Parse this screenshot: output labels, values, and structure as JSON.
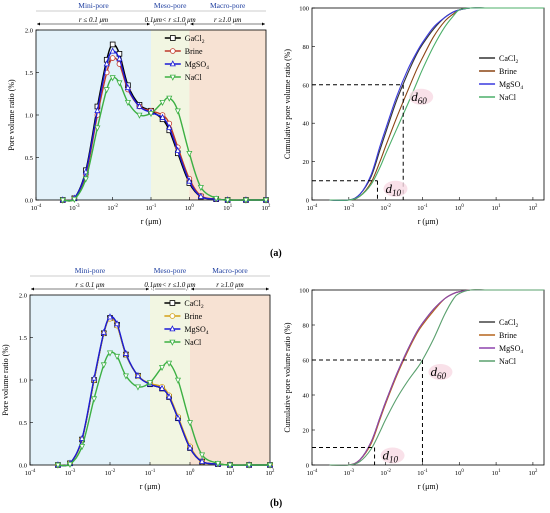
{
  "figure": {
    "panel_labels": [
      "(a)",
      "(b)"
    ],
    "zone_labels": [
      "Mini-pore",
      "Meso-pore",
      "Macro-pore"
    ],
    "zone_ranges": {
      "mini": [
        "r ",
        "≤",
        " 0.1 μm"
      ],
      "meso": [
        "0.1μm",
        "<",
        " r ",
        "≤",
        "1.0 μm"
      ],
      "macro": [
        "r ",
        "≥",
        "1.0 μm"
      ]
    },
    "colors": {
      "mini_zone": "#e3f2fa",
      "meso_zone": "#f2f6e2",
      "macro_zone": "#f7e2d3",
      "axis_text": "#000000",
      "zone_title": "#1f3fa0"
    }
  },
  "chart_data": [
    {
      "id": "a-left",
      "type": "line",
      "panel": "(a)",
      "xlabel": "r (μm)",
      "ylabel": "Pore volume ratio (%)",
      "xscale": "log",
      "xlim": [
        0.0001,
        100
      ],
      "ylim": [
        0,
        2.0
      ],
      "yticks": [
        "0.0",
        "0.5",
        "1.0",
        "1.5",
        "2.0"
      ],
      "xticks": [
        "10-4",
        "10-3",
        "10-2",
        "10-1",
        "100",
        "101",
        "102"
      ],
      "legend": "top-right",
      "series": [
        {
          "name": "GaCl2",
          "color": "#000000",
          "marker": "square",
          "x": [
            0.0005,
            0.001,
            0.002,
            0.004,
            0.007,
            0.01,
            0.015,
            0.025,
            0.05,
            0.1,
            0.2,
            0.3,
            0.5,
            1,
            2,
            5,
            10,
            30,
            100
          ],
          "y": [
            0,
            0.02,
            0.35,
            1.1,
            1.65,
            1.83,
            1.72,
            1.35,
            1.12,
            1.05,
            0.95,
            0.82,
            0.55,
            0.2,
            0.04,
            0.01,
            0,
            0,
            0
          ]
        },
        {
          "name": "Brine",
          "color": "#c0392b",
          "marker": "circle",
          "x": [
            0.0005,
            0.001,
            0.002,
            0.004,
            0.007,
            0.01,
            0.015,
            0.025,
            0.05,
            0.1,
            0.2,
            0.3,
            0.5,
            1,
            2,
            5,
            10,
            30,
            100
          ],
          "y": [
            0,
            0.02,
            0.3,
            1.0,
            1.5,
            1.67,
            1.6,
            1.3,
            1.1,
            1.05,
            1.0,
            0.9,
            0.62,
            0.25,
            0.05,
            0.01,
            0,
            0,
            0
          ]
        },
        {
          "name": "MgSO4",
          "color": "#1a1ad6",
          "marker": "triangle-up",
          "x": [
            0.0005,
            0.001,
            0.002,
            0.004,
            0.007,
            0.01,
            0.015,
            0.025,
            0.05,
            0.1,
            0.2,
            0.3,
            0.5,
            1,
            2,
            5,
            10,
            30,
            100
          ],
          "y": [
            0,
            0.02,
            0.33,
            1.05,
            1.6,
            1.75,
            1.66,
            1.32,
            1.1,
            1.03,
            0.97,
            0.85,
            0.58,
            0.22,
            0.04,
            0.01,
            0,
            0,
            0
          ]
        },
        {
          "name": "NaCl",
          "color": "#3cb043",
          "marker": "triangle-down",
          "x": [
            0.0005,
            0.001,
            0.002,
            0.004,
            0.007,
            0.01,
            0.015,
            0.025,
            0.05,
            0.1,
            0.2,
            0.3,
            0.5,
            1,
            2,
            5,
            10,
            30,
            100
          ],
          "y": [
            0,
            0.01,
            0.25,
            0.85,
            1.3,
            1.44,
            1.38,
            1.15,
            1.0,
            1.02,
            1.15,
            1.2,
            1.05,
            0.55,
            0.15,
            0.02,
            0,
            0,
            0
          ]
        }
      ]
    },
    {
      "id": "a-right",
      "type": "line",
      "panel": "(a)",
      "xlabel": "r (μm)",
      "ylabel": "Cumulative pore volume ratio (%)",
      "xscale": "log",
      "xlim": [
        0.0001,
        200
      ],
      "ylim": [
        0,
        100
      ],
      "yticks": [
        "0",
        "20",
        "40",
        "60",
        "80",
        "100"
      ],
      "xticks": [
        "10-4",
        "10-3",
        "10-2",
        "10-1",
        "100",
        "101",
        "102"
      ],
      "legend": "right",
      "annotations": {
        "d60": "d60",
        "d10": "d10",
        "d60_y": 60,
        "d60_x": 0.03,
        "d10_y": 10,
        "d10_x": 0.006
      },
      "series": [
        {
          "name": "CaCl2",
          "color": "#333333",
          "x": [
            0.0003,
            0.001,
            0.002,
            0.004,
            0.007,
            0.01,
            0.02,
            0.04,
            0.07,
            0.1,
            0.2,
            0.4,
            0.7,
            1,
            2,
            5,
            10,
            100,
            200
          ],
          "y": [
            0,
            0,
            3,
            12,
            26,
            35,
            52,
            66,
            76,
            81,
            89,
            95,
            98,
            99,
            100,
            100,
            100,
            100,
            100
          ]
        },
        {
          "name": "Brine",
          "color": "#8b4513",
          "x": [
            0.0003,
            0.001,
            0.002,
            0.004,
            0.007,
            0.01,
            0.02,
            0.04,
            0.07,
            0.1,
            0.2,
            0.4,
            0.7,
            1,
            2,
            5,
            10,
            100,
            200
          ],
          "y": [
            0,
            0,
            2,
            9,
            20,
            28,
            43,
            57,
            68,
            74,
            85,
            93,
            97,
            99,
            100,
            100,
            100,
            100,
            100
          ]
        },
        {
          "name": "MgSO4",
          "color": "#3a3adf",
          "x": [
            0.0003,
            0.001,
            0.002,
            0.004,
            0.007,
            0.01,
            0.02,
            0.04,
            0.07,
            0.1,
            0.2,
            0.4,
            0.7,
            1,
            2,
            5,
            10,
            100,
            200
          ],
          "y": [
            0,
            0,
            3,
            13,
            28,
            37,
            54,
            68,
            77,
            82,
            90,
            95,
            98,
            99,
            100,
            100,
            100,
            100,
            100
          ]
        },
        {
          "name": "NaCl",
          "color": "#4caf6a",
          "x": [
            0.0003,
            0.001,
            0.002,
            0.004,
            0.007,
            0.01,
            0.02,
            0.04,
            0.07,
            0.1,
            0.2,
            0.4,
            0.7,
            1,
            2,
            5,
            10,
            100,
            200
          ],
          "y": [
            0,
            0,
            2,
            8,
            17,
            24,
            37,
            50,
            61,
            68,
            80,
            90,
            96,
            99,
            100,
            100,
            100,
            100,
            100
          ]
        }
      ]
    },
    {
      "id": "b-left",
      "type": "line",
      "panel": "(b)",
      "xlabel": "r (μm)",
      "ylabel": "Pore volume ratio (%)",
      "xscale": "log",
      "xlim": [
        0.0001,
        100
      ],
      "ylim": [
        0,
        2.0
      ],
      "yticks": [
        "0.0",
        "0.5",
        "1.0",
        "1.5",
        "2.0"
      ],
      "xticks": [
        "10-4",
        "10-3",
        "10-2",
        "10-1",
        "100",
        "101",
        "102"
      ],
      "legend": "top-right",
      "series": [
        {
          "name": "CaCl2",
          "color": "#000000",
          "marker": "square",
          "x": [
            0.0005,
            0.001,
            0.002,
            0.004,
            0.007,
            0.01,
            0.015,
            0.025,
            0.05,
            0.1,
            0.2,
            0.3,
            0.5,
            1,
            2,
            5,
            10,
            30,
            100
          ],
          "y": [
            0,
            0.02,
            0.3,
            1.0,
            1.55,
            1.73,
            1.65,
            1.3,
            1.05,
            0.95,
            0.9,
            0.8,
            0.55,
            0.2,
            0.04,
            0.01,
            0,
            0,
            0
          ]
        },
        {
          "name": "Brine",
          "color": "#d4a017",
          "marker": "circle",
          "x": [
            0.0005,
            0.001,
            0.002,
            0.004,
            0.007,
            0.01,
            0.015,
            0.025,
            0.05,
            0.1,
            0.2,
            0.3,
            0.5,
            1,
            2,
            5,
            10,
            30,
            100
          ],
          "y": [
            0,
            0.02,
            0.3,
            1.0,
            1.55,
            1.72,
            1.64,
            1.3,
            1.05,
            0.96,
            0.92,
            0.82,
            0.57,
            0.22,
            0.04,
            0.01,
            0,
            0,
            0
          ]
        },
        {
          "name": "MgSO4",
          "color": "#1a1ad6",
          "marker": "triangle-up",
          "x": [
            0.0005,
            0.001,
            0.002,
            0.004,
            0.007,
            0.01,
            0.015,
            0.025,
            0.05,
            0.1,
            0.2,
            0.3,
            0.5,
            1,
            2,
            5,
            10,
            30,
            100
          ],
          "y": [
            0,
            0.02,
            0.31,
            1.02,
            1.56,
            1.74,
            1.66,
            1.31,
            1.05,
            0.95,
            0.9,
            0.8,
            0.55,
            0.2,
            0.04,
            0.01,
            0,
            0,
            0
          ]
        },
        {
          "name": "NaCl",
          "color": "#3cb043",
          "marker": "triangle-down",
          "x": [
            0.0005,
            0.001,
            0.002,
            0.004,
            0.007,
            0.01,
            0.015,
            0.025,
            0.05,
            0.1,
            0.2,
            0.3,
            0.5,
            1,
            2,
            5,
            10,
            30,
            100
          ],
          "y": [
            0,
            0.01,
            0.22,
            0.78,
            1.18,
            1.32,
            1.28,
            1.05,
            0.92,
            0.97,
            1.15,
            1.2,
            1.0,
            0.5,
            0.12,
            0.02,
            0,
            0,
            0
          ]
        }
      ]
    },
    {
      "id": "b-right",
      "type": "line",
      "panel": "(b)",
      "xlabel": "r (μm)",
      "ylabel": "Cumulative pore volume ratio (%)",
      "xscale": "log",
      "xlim": [
        0.0001,
        200
      ],
      "ylim": [
        0,
        100
      ],
      "yticks": [
        "0",
        "20",
        "40",
        "60",
        "80",
        "100"
      ],
      "xticks": [
        "10-4",
        "10-3",
        "10-2",
        "10-1",
        "100",
        "101",
        "102"
      ],
      "legend": "right",
      "annotations": {
        "d60": "d60",
        "d10": "d10",
        "d60_y": 60,
        "d60_x": 0.1,
        "d10_y": 10,
        "d10_x": 0.005
      },
      "series": [
        {
          "name": "CaCl2",
          "color": "#444444",
          "x": [
            0.0003,
            0.001,
            0.002,
            0.004,
            0.007,
            0.01,
            0.02,
            0.04,
            0.07,
            0.1,
            0.2,
            0.4,
            0.7,
            1,
            2,
            5,
            10,
            100,
            200
          ],
          "y": [
            0,
            0,
            3,
            13,
            27,
            36,
            52,
            66,
            76,
            81,
            89,
            95,
            98,
            99,
            100,
            100,
            100,
            100,
            100
          ]
        },
        {
          "name": "Brine",
          "color": "#b5651d",
          "x": [
            0.0003,
            0.001,
            0.002,
            0.004,
            0.007,
            0.01,
            0.02,
            0.04,
            0.07,
            0.1,
            0.2,
            0.4,
            0.7,
            1,
            2,
            5,
            10,
            100,
            200
          ],
          "y": [
            0,
            0,
            3,
            12,
            26,
            35,
            51,
            65,
            75,
            80,
            88,
            95,
            98,
            99,
            100,
            100,
            100,
            100,
            100
          ]
        },
        {
          "name": "MgSO4",
          "color": "#8e44ad",
          "x": [
            0.0003,
            0.001,
            0.002,
            0.004,
            0.007,
            0.01,
            0.02,
            0.04,
            0.07,
            0.1,
            0.2,
            0.4,
            0.7,
            1,
            2,
            5,
            10,
            100,
            200
          ],
          "y": [
            0,
            0,
            3,
            13,
            27,
            36,
            52,
            66,
            76,
            81,
            89,
            95,
            98,
            99,
            100,
            100,
            100,
            100,
            100
          ]
        },
        {
          "name": "NaCl",
          "color": "#5aa06e",
          "x": [
            0.0003,
            0.001,
            0.002,
            0.004,
            0.007,
            0.01,
            0.02,
            0.04,
            0.07,
            0.1,
            0.2,
            0.4,
            0.7,
            1,
            2,
            5,
            10,
            100,
            200
          ],
          "y": [
            0,
            0,
            2,
            9,
            19,
            26,
            38,
            48,
            55,
            60,
            72,
            86,
            95,
            98,
            100,
            100,
            100,
            100,
            100
          ]
        }
      ]
    }
  ]
}
